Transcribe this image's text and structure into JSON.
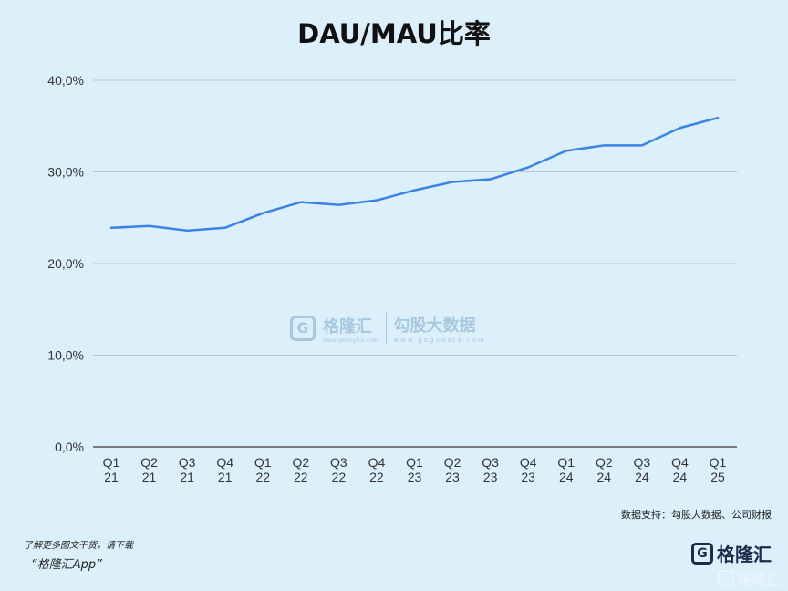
{
  "chart_data": {
    "type": "line",
    "title": "DAU/MAU比率",
    "xlabel": "",
    "ylabel": "",
    "categories": [
      [
        "Q1",
        "21"
      ],
      [
        "Q2",
        "21"
      ],
      [
        "Q3",
        "21"
      ],
      [
        "Q4",
        "21"
      ],
      [
        "Q1",
        "22"
      ],
      [
        "Q2",
        "22"
      ],
      [
        "Q3",
        "22"
      ],
      [
        "Q4",
        "22"
      ],
      [
        "Q1",
        "23"
      ],
      [
        "Q2",
        "23"
      ],
      [
        "Q3",
        "23"
      ],
      [
        "Q4",
        "23"
      ],
      [
        "Q1",
        "24"
      ],
      [
        "Q2",
        "24"
      ],
      [
        "Q3",
        "24"
      ],
      [
        "Q4",
        "24"
      ],
      [
        "Q1",
        "25"
      ]
    ],
    "values": [
      23.9,
      24.1,
      23.6,
      23.9,
      25.5,
      26.7,
      26.4,
      26.9,
      28.0,
      28.9,
      29.2,
      30.5,
      32.3,
      32.9,
      32.9,
      34.8,
      35.9
    ],
    "ylim": [
      0,
      40
    ],
    "yticks": [
      0,
      10,
      20,
      30,
      40
    ],
    "ytick_labels": [
      "0,0%",
      "10,0%",
      "20,0%",
      "30,0%",
      "40,0%"
    ],
    "line_color": "#3b82e6",
    "grid": true,
    "legend": "none"
  },
  "watermark": {
    "logo_glyph": "G",
    "brand": "格隆汇",
    "brand_url": "www.gelonghui.com",
    "partner": "勾股大数据",
    "partner_url": "www.gogudata.com"
  },
  "footer": {
    "source": "数据支持：勾股大数据、公司财报",
    "promo_line1": "了解更多图文干货，请下载",
    "promo_line2": "“格隆汇App”",
    "brand_logo_glyph": "G",
    "brand_name": "格隆汇"
  }
}
